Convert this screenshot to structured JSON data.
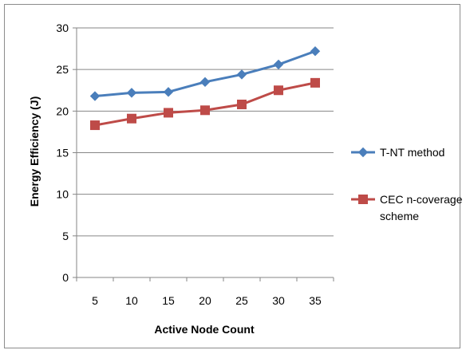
{
  "chart_data": {
    "type": "line",
    "x": [
      5,
      10,
      15,
      20,
      25,
      30,
      35
    ],
    "categories": [
      "5",
      "10",
      "15",
      "20",
      "25",
      "30",
      "35"
    ],
    "series": [
      {
        "name": "T-NT method",
        "values": [
          21.8,
          22.2,
          22.3,
          23.5,
          24.4,
          25.6,
          27.2
        ],
        "color": "#4a7ebb",
        "marker": "diamond"
      },
      {
        "name": "CEC n-coverage scheme",
        "values": [
          18.3,
          19.1,
          19.8,
          20.1,
          20.8,
          22.5,
          23.4
        ],
        "color": "#be4b48",
        "marker": "square"
      }
    ],
    "xlabel": "Active Node Count",
    "ylabel": "Energy Efficiency (J)",
    "ylim": [
      0,
      30
    ],
    "yticks": [
      0,
      5,
      10,
      15,
      20,
      25,
      30
    ],
    "grid": "horizontal",
    "legend_position": "right"
  },
  "legend": {
    "items": [
      {
        "lines": [
          "T-NT method"
        ]
      },
      {
        "lines": [
          "CEC n-coverage",
          "scheme"
        ]
      }
    ]
  }
}
